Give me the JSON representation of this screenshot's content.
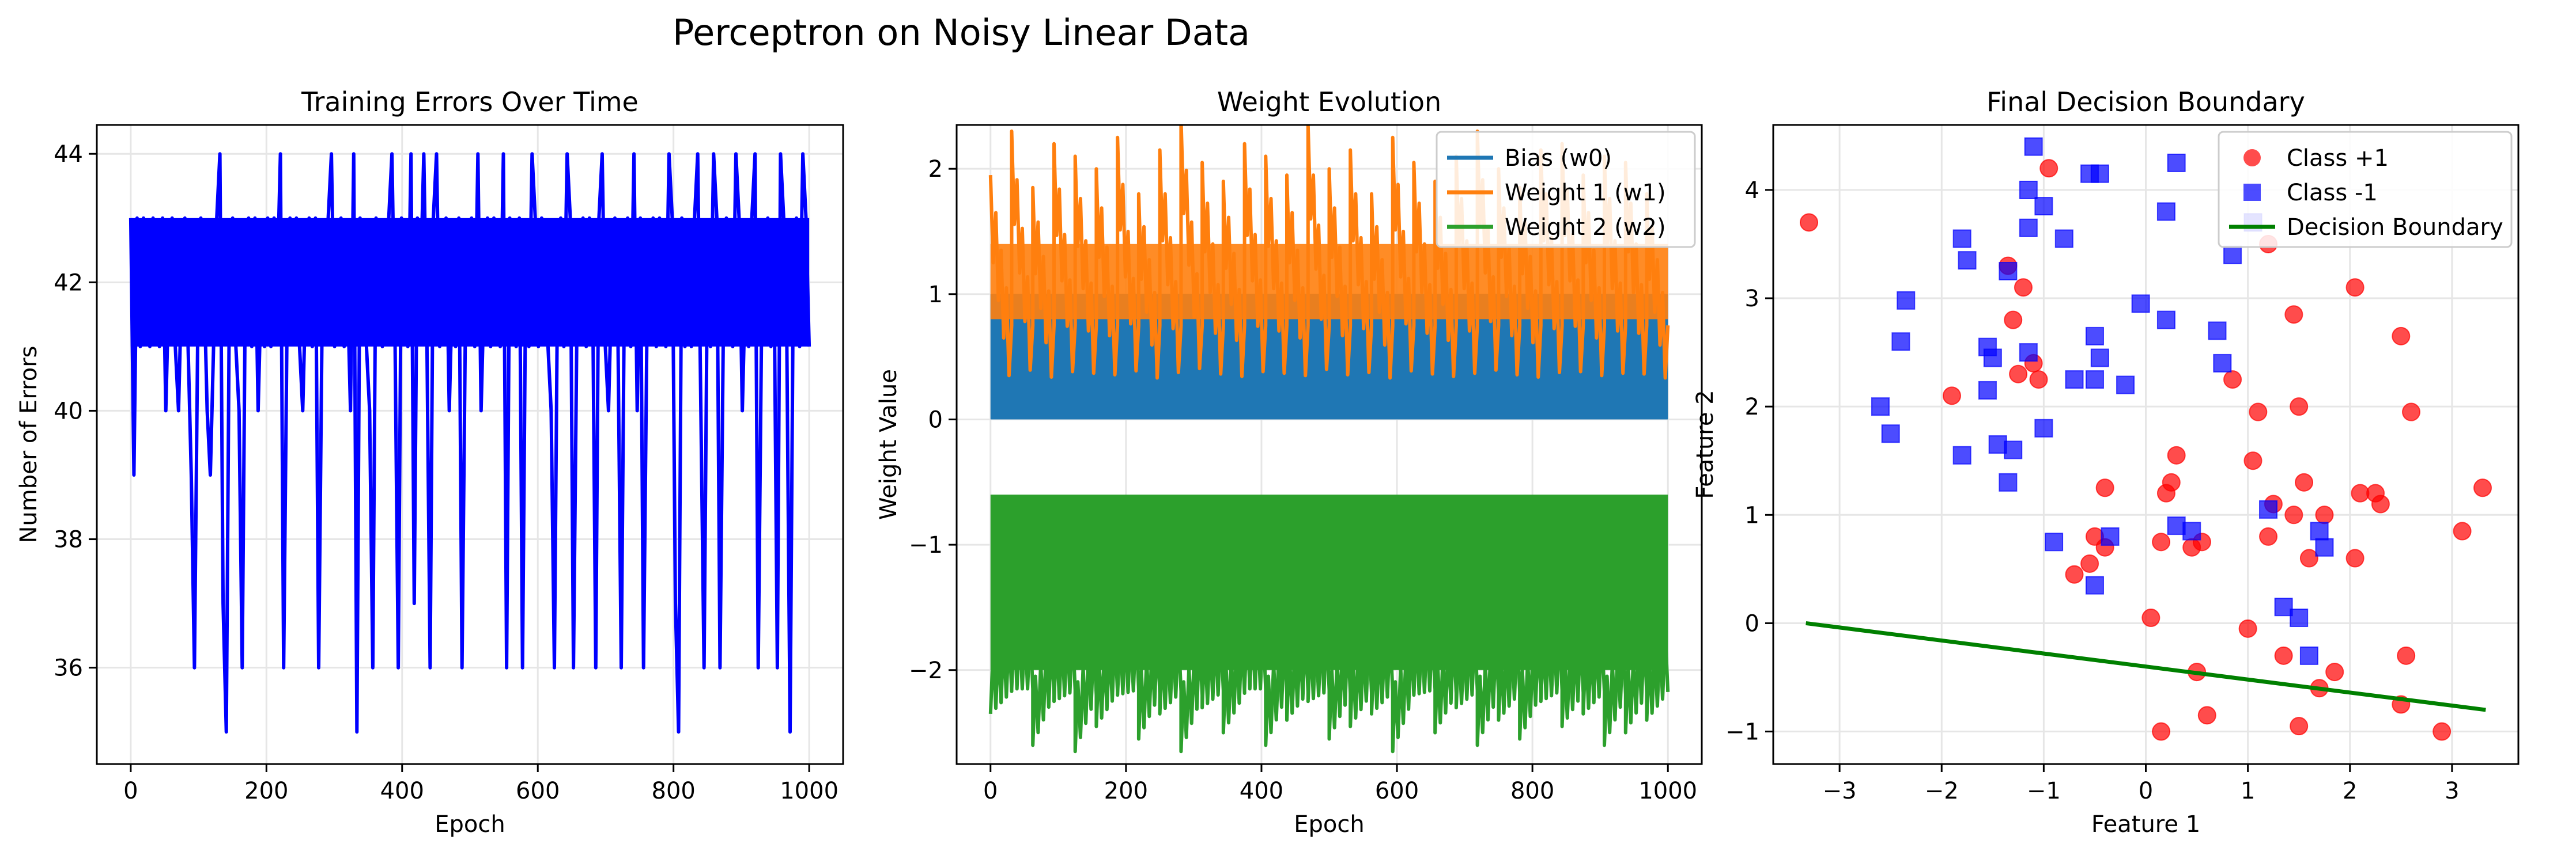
{
  "figure": {
    "suptitle": "Perceptron on Noisy Linear Data"
  },
  "colors": {
    "errors": "#0000ff",
    "bias": "#1f77b4",
    "w1": "#ff7f0e",
    "w2": "#2ca02c",
    "class_pos": "#ff0000",
    "class_neg": "#0000ff",
    "boundary": "#008000",
    "grid": "#e6e6e6"
  },
  "chart_data": [
    {
      "type": "line",
      "title": "Training Errors Over Time",
      "xlabel": "Epoch",
      "ylabel": "Number of Errors",
      "xlim": [
        -50,
        1050
      ],
      "ylim": [
        34.5,
        44.45
      ],
      "xticks": [
        0,
        200,
        400,
        600,
        800,
        1000
      ],
      "yticks": [
        36,
        38,
        40,
        42,
        44
      ],
      "grid": true,
      "series": [
        {
          "values": [
            43,
            39,
            43,
            41,
            43,
            42,
            41,
            43,
            42,
            41,
            43,
            40,
            42,
            43,
            41,
            40,
            42,
            43,
            41,
            39,
            36,
            41,
            43,
            42,
            40,
            39,
            41,
            43,
            44,
            37,
            35,
            42,
            43,
            41,
            40,
            36,
            42,
            43,
            41,
            43,
            40,
            42,
            41,
            43,
            41,
            43,
            42,
            44,
            36,
            41,
            43,
            42,
            43,
            41,
            40,
            42,
            43,
            41,
            43,
            36,
            41,
            42,
            43,
            44,
            41,
            42,
            43,
            41,
            42,
            40,
            44,
            35,
            43,
            42,
            41,
            40,
            36,
            43,
            42,
            41,
            42,
            43,
            44,
            41,
            36,
            43,
            42,
            41,
            44,
            37,
            43,
            42,
            44,
            41,
            36,
            43,
            44,
            41,
            42,
            43,
            40,
            42,
            41,
            43,
            36,
            41,
            42,
            43,
            41,
            44,
            40,
            42,
            43,
            41,
            43,
            42,
            41,
            44,
            36,
            43,
            42,
            41,
            43,
            36,
            42,
            41,
            44,
            43,
            41,
            43,
            42,
            41,
            40,
            36,
            42,
            43,
            41,
            44,
            43,
            36,
            41,
            42,
            43,
            41,
            43,
            42,
            36,
            43,
            44,
            41,
            40,
            42,
            43,
            41,
            36,
            42,
            43,
            41,
            44,
            40,
            43,
            36,
            41,
            42,
            43,
            41,
            43,
            42,
            41,
            44,
            43,
            37,
            35,
            43,
            41,
            42,
            41,
            43,
            44,
            40,
            36,
            42,
            41,
            44,
            43,
            36,
            41,
            43,
            42,
            41,
            44,
            43,
            40,
            42,
            41,
            43,
            44,
            36,
            41,
            42,
            43,
            41,
            42,
            36,
            44,
            43,
            41,
            35,
            42,
            43,
            41,
            44,
            43,
            41
          ]
        }
      ]
    },
    {
      "type": "line",
      "title": "Weight Evolution",
      "xlabel": "Epoch",
      "ylabel": "Weight Value",
      "xlim": [
        -50,
        1050
      ],
      "ylim": [
        -2.75,
        2.35
      ],
      "xticks": [
        0,
        200,
        400,
        600,
        800,
        1000
      ],
      "yticks": [
        -2,
        -1,
        0,
        1,
        2
      ],
      "grid": true,
      "legend": "top-right",
      "series": [
        {
          "name": "Bias (w0)",
          "levels": [
            0,
            1
          ]
        },
        {
          "name": "Weight 1 (w1)",
          "peaks": [
            1.75,
            2.1,
            1.65,
            2.0,
            1.9,
            1.8,
            2.05,
            1.6,
            1.95,
            2.2,
            1.85,
            1.7,
            2.0,
            1.9,
            1.75,
            2.15,
            1.8,
            1.95,
            1.6,
            2.05,
            1.85,
            1.7,
            1.9,
            2.1,
            1.8,
            1.65,
            1.95,
            2.0,
            1.75,
            1.9,
            1.85,
            1.6
          ]
        },
        {
          "name": "Weight 2 (w2)",
          "troughs": [
            -2.2,
            -2.0,
            -2.45,
            -2.1,
            -2.5,
            -2.3,
            -2.05,
            -2.4,
            -2.2,
            -2.5,
            -2.15,
            -2.35,
            -2.0,
            -2.45,
            -2.25,
            -2.1,
            -2.4,
            -2.3,
            -2.2,
            -2.5,
            -2.05,
            -2.35,
            -2.15,
            -2.45,
            -2.25,
            -2.4,
            -2.1,
            -2.3,
            -2.2,
            -2.45,
            -2.35,
            -2.25
          ]
        }
      ]
    },
    {
      "type": "scatter",
      "title": "Final Decision Boundary",
      "xlabel": "Feature 1",
      "ylabel": "Feature 2",
      "xlim": [
        -3.65,
        3.65
      ],
      "ylim": [
        -1.3,
        4.6
      ],
      "xticks": [
        -3,
        -2,
        -1,
        0,
        1,
        2,
        3
      ],
      "yticks": [
        -1,
        0,
        1,
        2,
        3,
        4
      ],
      "grid": true,
      "legend": "top-right",
      "series": [
        {
          "name": "Class +1",
          "points": [
            [
              -3.3,
              3.7
            ],
            [
              -1.9,
              2.1
            ],
            [
              -1.35,
              3.3
            ],
            [
              -1.3,
              2.8
            ],
            [
              -1.2,
              3.1
            ],
            [
              -1.1,
              2.4
            ],
            [
              -1.05,
              2.25
            ],
            [
              -0.95,
              4.2
            ],
            [
              -1.25,
              2.3
            ],
            [
              -0.4,
              1.25
            ],
            [
              -0.5,
              0.8
            ],
            [
              -0.7,
              0.45
            ],
            [
              -0.55,
              0.55
            ],
            [
              -0.4,
              0.7
            ],
            [
              0.05,
              0.05
            ],
            [
              0.2,
              1.2
            ],
            [
              0.25,
              1.3
            ],
            [
              0.3,
              1.55
            ],
            [
              0.15,
              0.75
            ],
            [
              0.45,
              0.7
            ],
            [
              0.55,
              0.75
            ],
            [
              0.5,
              -0.45
            ],
            [
              0.6,
              -0.85
            ],
            [
              0.15,
              -1.0
            ],
            [
              0.85,
              2.25
            ],
            [
              1.05,
              1.5
            ],
            [
              1.1,
              1.95
            ],
            [
              1.0,
              -0.05
            ],
            [
              1.2,
              3.5
            ],
            [
              1.25,
              1.1
            ],
            [
              1.2,
              0.8
            ],
            [
              1.35,
              -0.3
            ],
            [
              1.45,
              2.85
            ],
            [
              1.45,
              1.0
            ],
            [
              1.55,
              1.3
            ],
            [
              1.5,
              2.0
            ],
            [
              1.6,
              0.6
            ],
            [
              1.5,
              -0.95
            ],
            [
              1.75,
              1.0
            ],
            [
              1.7,
              -0.6
            ],
            [
              1.85,
              -0.45
            ],
            [
              2.05,
              3.1
            ],
            [
              2.05,
              0.6
            ],
            [
              2.1,
              1.2
            ],
            [
              2.25,
              1.2
            ],
            [
              2.3,
              1.1
            ],
            [
              2.5,
              2.65
            ],
            [
              2.6,
              1.95
            ],
            [
              2.55,
              -0.3
            ],
            [
              2.5,
              -0.75
            ],
            [
              2.9,
              -1.0
            ],
            [
              3.1,
              0.85
            ],
            [
              3.3,
              1.25
            ]
          ]
        },
        {
          "name": "Class -1",
          "points": [
            [
              -2.6,
              2.0
            ],
            [
              -2.5,
              1.75
            ],
            [
              -2.4,
              2.6
            ],
            [
              -2.35,
              2.98
            ],
            [
              -1.8,
              3.55
            ],
            [
              -1.75,
              3.35
            ],
            [
              -1.8,
              1.55
            ],
            [
              -1.55,
              2.55
            ],
            [
              -1.5,
              2.45
            ],
            [
              -1.55,
              2.15
            ],
            [
              -1.45,
              1.65
            ],
            [
              -1.3,
              1.6
            ],
            [
              -1.35,
              3.25
            ],
            [
              -1.35,
              1.3
            ],
            [
              -1.15,
              4.0
            ],
            [
              -1.15,
              3.65
            ],
            [
              -1.1,
              4.4
            ],
            [
              -1.15,
              2.5
            ],
            [
              -1.0,
              3.85
            ],
            [
              -1.0,
              1.8
            ],
            [
              -0.9,
              0.75
            ],
            [
              -0.8,
              3.55
            ],
            [
              -0.7,
              2.25
            ],
            [
              -0.55,
              4.15
            ],
            [
              -0.45,
              4.15
            ],
            [
              -0.5,
              2.65
            ],
            [
              -0.45,
              2.45
            ],
            [
              -0.5,
              2.25
            ],
            [
              -0.5,
              0.35
            ],
            [
              -0.35,
              0.8
            ],
            [
              -0.2,
              2.2
            ],
            [
              -0.05,
              2.95
            ],
            [
              0.2,
              3.8
            ],
            [
              0.3,
              4.25
            ],
            [
              0.2,
              2.8
            ],
            [
              0.3,
              0.9
            ],
            [
              0.45,
              0.85
            ],
            [
              0.7,
              2.7
            ],
            [
              0.75,
              2.4
            ],
            [
              0.85,
              3.4
            ],
            [
              1.05,
              3.7
            ],
            [
              1.2,
              1.05
            ],
            [
              1.35,
              0.15
            ],
            [
              1.5,
              0.05
            ],
            [
              1.6,
              -0.3
            ],
            [
              1.7,
              0.85
            ],
            [
              1.75,
              0.7
            ]
          ]
        },
        {
          "name": "Decision Boundary",
          "type": "line",
          "points": [
            [
              -3.33,
              0.0
            ],
            [
              3.33,
              -0.8
            ]
          ]
        }
      ]
    }
  ]
}
